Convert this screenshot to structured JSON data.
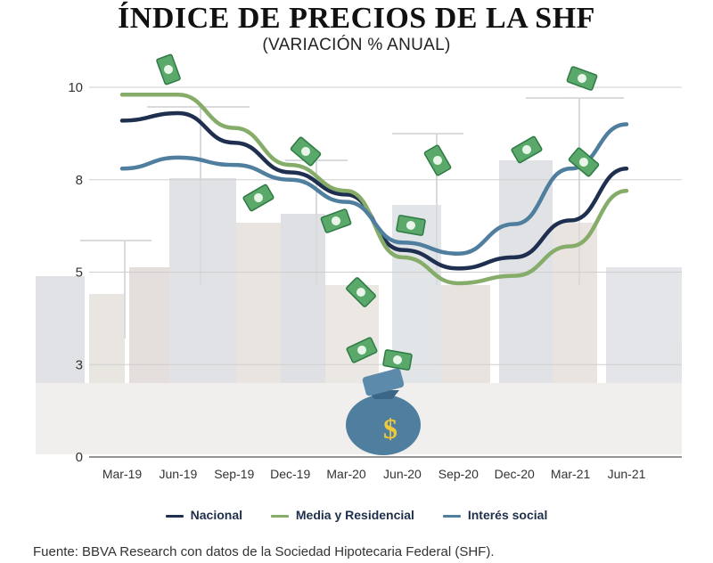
{
  "title": "ÍNDICE DE PRECIOS DE LA SHF",
  "subtitle": "(VARIACIÓN % ANUAL)",
  "source": "Fuente: BBVA Research con datos de la Sociedad Hipotecaria Federal (SHF).",
  "chart_data": {
    "type": "line",
    "categories": [
      "Mar-19",
      "Jun-19",
      "Sep-19",
      "Dec-19",
      "Mar-20",
      "Jun-20",
      "Sep-20",
      "Dec-20",
      "Mar-21",
      "Jun-21"
    ],
    "y_ticks": [
      {
        "value": 0,
        "label": "0"
      },
      {
        "value": 2.5,
        "label": "3"
      },
      {
        "value": 5,
        "label": "5"
      },
      {
        "value": 7.5,
        "label": "8"
      },
      {
        "value": 10,
        "label": "10"
      }
    ],
    "ylim": [
      0,
      10
    ],
    "grid": true,
    "legend_position": "bottom",
    "series": [
      {
        "name": "Nacional",
        "color": "#1f2f4f",
        "values": [
          9.1,
          9.3,
          8.5,
          7.7,
          7.1,
          5.6,
          5.1,
          5.4,
          6.4,
          7.8
        ]
      },
      {
        "name": "Media y Residencial",
        "color": "#86ac6a",
        "values": [
          9.8,
          9.8,
          8.9,
          7.9,
          7.2,
          5.4,
          4.7,
          4.9,
          5.7,
          7.2
        ]
      },
      {
        "name": "Interés social",
        "color": "#4f7e9e",
        "values": [
          7.8,
          8.1,
          7.9,
          7.5,
          6.9,
          5.8,
          5.5,
          6.3,
          7.8,
          9.0
        ]
      }
    ]
  },
  "illustration": {
    "background": "construction-buildings-with-cranes",
    "money_bag_icon": "money-bag-icon",
    "bill_icon": "flying-banknote-icon",
    "money_symbol": "$"
  }
}
